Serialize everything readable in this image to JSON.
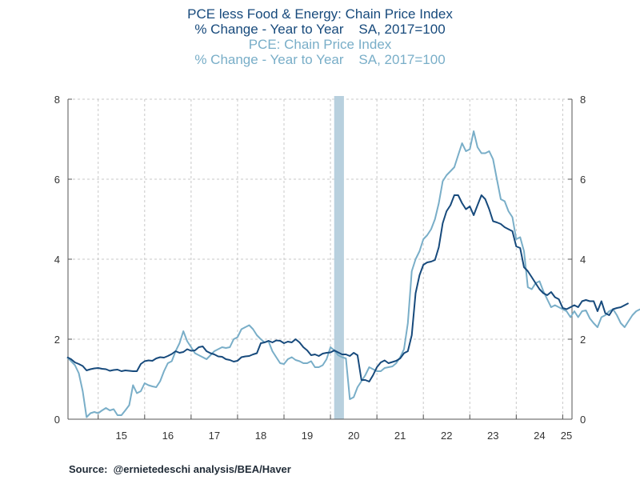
{
  "chart_data": {
    "type": "line",
    "title_lines": [
      "PCE less Food & Energy: Chain Price Index",
      "% Change - Year to Year    SA, 2017=100",
      "PCE: Chain Price Index",
      "% Change - Year to Year    SA, 2017=100"
    ],
    "source": "Source:  @ernietedeschi analysis/BEA/Haver",
    "x_start": "2014-05",
    "x_range": [
      2014.35,
      2025.2
    ],
    "ylim": [
      0,
      8
    ],
    "yticks": [
      0,
      2,
      4,
      6,
      8
    ],
    "xtick_labels": [
      "15",
      "16",
      "17",
      "18",
      "19",
      "20",
      "21",
      "22",
      "23",
      "24",
      "25"
    ],
    "grid": true,
    "recession_shading": [
      2020.08,
      2020.29
    ],
    "series": [
      {
        "name": "PCE less Food & Energy: Chain Price Index",
        "color": "#174a7c",
        "values": [
          1.55,
          1.5,
          1.42,
          1.38,
          1.33,
          1.22,
          1.25,
          1.27,
          1.28,
          1.26,
          1.25,
          1.21,
          1.23,
          1.24,
          1.2,
          1.22,
          1.21,
          1.2,
          1.2,
          1.38,
          1.45,
          1.47,
          1.46,
          1.52,
          1.55,
          1.54,
          1.58,
          1.63,
          1.7,
          1.66,
          1.68,
          1.75,
          1.71,
          1.72,
          1.8,
          1.82,
          1.7,
          1.65,
          1.62,
          1.57,
          1.56,
          1.5,
          1.48,
          1.44,
          1.46,
          1.55,
          1.57,
          1.58,
          1.62,
          1.65,
          1.9,
          1.92,
          1.96,
          1.92,
          1.97,
          1.96,
          1.9,
          1.94,
          1.92,
          2.0,
          1.92,
          1.8,
          1.72,
          1.6,
          1.62,
          1.58,
          1.64,
          1.66,
          1.67,
          1.72,
          1.67,
          1.62,
          1.62,
          1.58,
          1.66,
          1.6,
          0.98,
          0.98,
          0.94,
          1.1,
          1.3,
          1.42,
          1.47,
          1.4,
          1.43,
          1.46,
          1.52,
          1.65,
          1.7,
          2.1,
          3.15,
          3.6,
          3.86,
          3.92,
          3.94,
          3.98,
          4.3,
          4.9,
          5.2,
          5.35,
          5.6,
          5.6,
          5.4,
          5.25,
          5.32,
          5.1,
          5.35,
          5.6,
          5.5,
          5.25,
          4.95,
          4.92,
          4.88,
          4.8,
          4.75,
          4.7,
          4.32,
          4.28,
          3.8,
          3.7,
          3.55,
          3.4,
          3.25,
          3.15,
          3.1,
          3.18,
          3.05,
          3.0,
          2.78,
          2.75,
          2.8,
          2.85,
          2.8,
          2.95,
          2.98,
          2.95,
          2.95,
          2.7,
          2.95,
          2.65,
          2.6,
          2.75,
          2.78,
          2.8,
          2.85,
          2.9
        ]
      },
      {
        "name": "PCE: Chain Price Index",
        "color": "#79aec8",
        "values": [
          1.55,
          1.45,
          1.35,
          1.15,
          0.7,
          0.05,
          0.15,
          0.18,
          0.15,
          0.22,
          0.28,
          0.22,
          0.25,
          0.1,
          0.1,
          0.22,
          0.35,
          0.85,
          0.65,
          0.7,
          0.9,
          0.85,
          0.82,
          0.8,
          0.95,
          1.2,
          1.4,
          1.45,
          1.7,
          1.9,
          2.2,
          1.95,
          1.8,
          1.65,
          1.6,
          1.55,
          1.5,
          1.6,
          1.7,
          1.75,
          1.8,
          1.78,
          1.8,
          2.0,
          2.05,
          2.25,
          2.3,
          2.35,
          2.25,
          2.1,
          2.0,
          1.92,
          1.95,
          1.7,
          1.55,
          1.4,
          1.38,
          1.5,
          1.55,
          1.48,
          1.45,
          1.4,
          1.4,
          1.45,
          1.3,
          1.3,
          1.35,
          1.5,
          1.8,
          1.72,
          1.6,
          1.55,
          1.52,
          0.5,
          0.55,
          0.8,
          0.95,
          1.1,
          1.3,
          1.25,
          1.2,
          1.2,
          1.28,
          1.3,
          1.32,
          1.4,
          1.55,
          1.75,
          2.4,
          3.7,
          4.0,
          4.2,
          4.5,
          4.6,
          4.75,
          5.0,
          5.4,
          5.95,
          6.1,
          6.2,
          6.3,
          6.6,
          6.9,
          6.7,
          6.75,
          7.2,
          6.8,
          6.65,
          6.65,
          6.7,
          6.5,
          6.0,
          5.5,
          5.45,
          5.2,
          5.05,
          4.5,
          4.55,
          4.2,
          3.3,
          3.25,
          3.4,
          3.45,
          3.2,
          3.0,
          2.8,
          2.85,
          2.8,
          2.75,
          2.7,
          2.55,
          2.7,
          2.55,
          2.7,
          2.72,
          2.52,
          2.4,
          2.3,
          2.55,
          2.6,
          2.7,
          2.75,
          2.6,
          2.4,
          2.3,
          2.45,
          2.6,
          2.7,
          2.75
        ]
      }
    ]
  }
}
